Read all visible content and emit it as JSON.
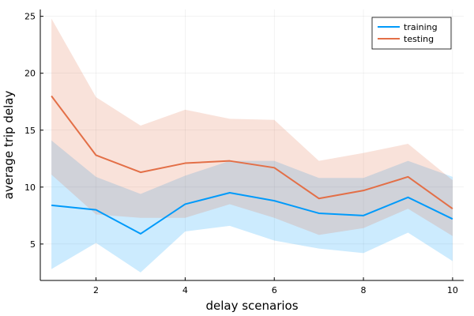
{
  "chart_data": {
    "type": "line",
    "xlabel": "delay scenarios",
    "ylabel": "average trip delay",
    "xlim": [
      0.75,
      10.25
    ],
    "ylim": [
      1.8,
      25.6
    ],
    "xticks": [
      2,
      4,
      6,
      8,
      10
    ],
    "yticks": [
      5,
      10,
      15,
      20,
      25
    ],
    "grid": true,
    "legend_position": "top-right",
    "x": [
      1,
      2,
      3,
      4,
      5,
      6,
      7,
      8,
      9,
      10
    ],
    "series": [
      {
        "name": "training",
        "color": "#009AFA",
        "values": [
          8.4,
          8.0,
          5.9,
          8.5,
          9.5,
          8.8,
          7.7,
          7.5,
          9.1,
          7.2
        ],
        "band_upper": [
          14.1,
          10.9,
          9.4,
          11.0,
          12.3,
          12.3,
          10.8,
          10.8,
          12.3,
          10.9
        ],
        "band_lower": [
          2.8,
          5.1,
          2.5,
          6.1,
          6.6,
          5.3,
          4.6,
          4.2,
          6.0,
          3.5
        ]
      },
      {
        "name": "testing",
        "color": "#E36F47",
        "values": [
          18.0,
          12.8,
          11.3,
          12.1,
          12.3,
          11.7,
          9.0,
          9.7,
          10.9,
          8.1
        ],
        "band_upper": [
          24.8,
          17.9,
          15.4,
          16.8,
          16.0,
          15.9,
          12.3,
          13.0,
          13.8,
          10.6
        ],
        "band_lower": [
          11.1,
          7.6,
          7.3,
          7.3,
          8.5,
          7.3,
          5.8,
          6.4,
          8.1,
          5.7
        ]
      }
    ]
  }
}
